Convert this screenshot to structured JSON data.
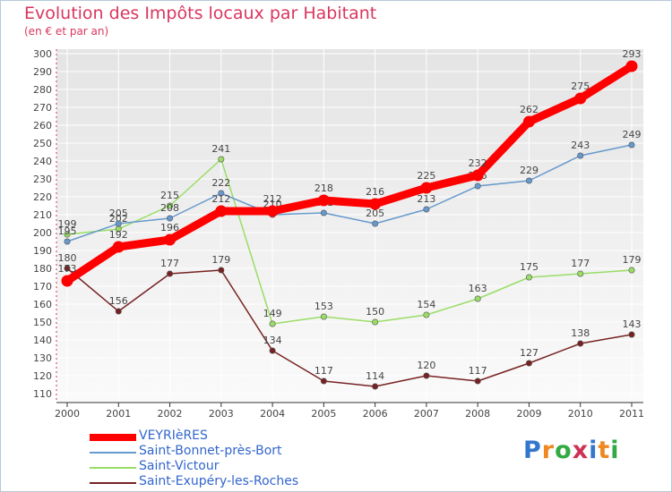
{
  "header": {
    "title": "Evolution des Impôts locaux par Habitant",
    "subtitle": "(en € et par an)"
  },
  "chart_data": {
    "type": "line",
    "title": "Evolution des Impôts locaux par Habitant",
    "subtitle": "(en € et par an)",
    "xlabel": "",
    "ylabel": "",
    "x": [
      "2000",
      "2001",
      "2002",
      "2003",
      "2004",
      "2005",
      "2006",
      "2007",
      "2008",
      "2009",
      "2010",
      "2011"
    ],
    "ylim": [
      110,
      300
    ],
    "yticks": [
      110,
      120,
      130,
      140,
      150,
      160,
      170,
      180,
      190,
      200,
      210,
      220,
      230,
      240,
      250,
      260,
      270,
      280,
      290,
      300
    ],
    "grid": true,
    "legend": "bottom-left",
    "series": [
      {
        "name": "VEYRIèRES",
        "color": "#ff0000",
        "values": [
          173,
          192,
          196,
          212,
          212,
          218,
          216,
          225,
          232,
          262,
          275,
          293
        ]
      },
      {
        "name": "Saint-Bonnet-près-Bort",
        "color": "#6699cc",
        "values": [
          195,
          205,
          208,
          222,
          210,
          211,
          205,
          213,
          226,
          229,
          243,
          249
        ]
      },
      {
        "name": "Saint-Victour",
        "color": "#99dd66",
        "values": [
          199,
          202,
          215,
          241,
          149,
          153,
          150,
          154,
          163,
          175,
          177,
          179
        ]
      },
      {
        "name": "Saint-Exupéry-les-Roches",
        "color": "#772222",
        "values": [
          180,
          156,
          177,
          179,
          134,
          117,
          114,
          120,
          117,
          127,
          138,
          143
        ]
      }
    ]
  },
  "logo": {
    "text": "Proxiti"
  }
}
